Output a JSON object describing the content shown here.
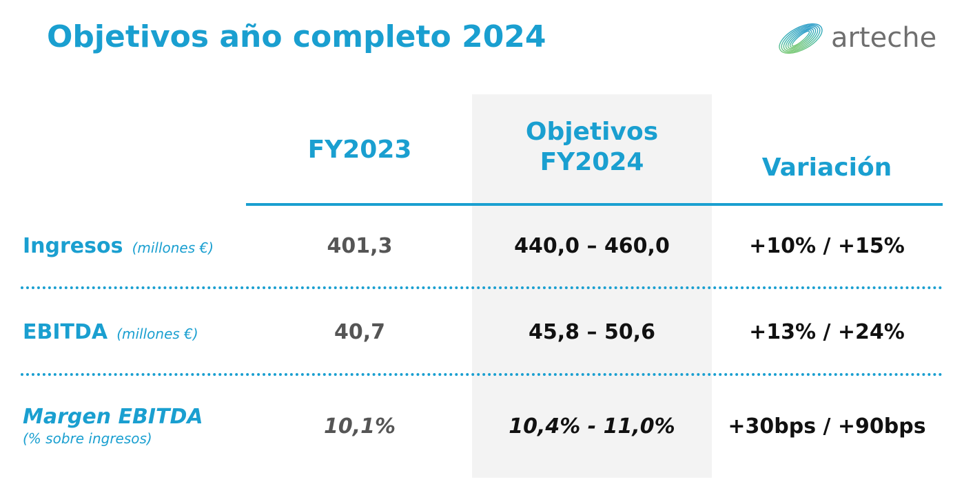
{
  "header": {
    "title": "Objetivos año completo 2024",
    "logo_text": "arteche"
  },
  "columns": {
    "fy2023": "FY2023",
    "objetivos_line1": "Objetivos",
    "objetivos_line2": "FY2024",
    "variacion": "Variación"
  },
  "rows": [
    {
      "label": "Ingresos",
      "unit": "(millones €)",
      "fy2023": "401,3",
      "objetivos": "440,0 – 460,0",
      "variacion": "+10% / +15%"
    },
    {
      "label": "EBITDA",
      "unit": "(millones €)",
      "fy2023": "40,7",
      "objetivos": "45,8 – 50,6",
      "variacion": "+13% / +24%"
    },
    {
      "label": "Margen EBITDA",
      "unit": "(% sobre ingresos)",
      "fy2023": "10,1%",
      "objetivos": "10,4% - 11,0%",
      "variacion": "+30bps / +90bps"
    }
  ],
  "colors": {
    "accent": "#1a9fd0",
    "value_gray": "#555555",
    "value_dark": "#111111",
    "column_highlight": "#f3f3f3"
  }
}
